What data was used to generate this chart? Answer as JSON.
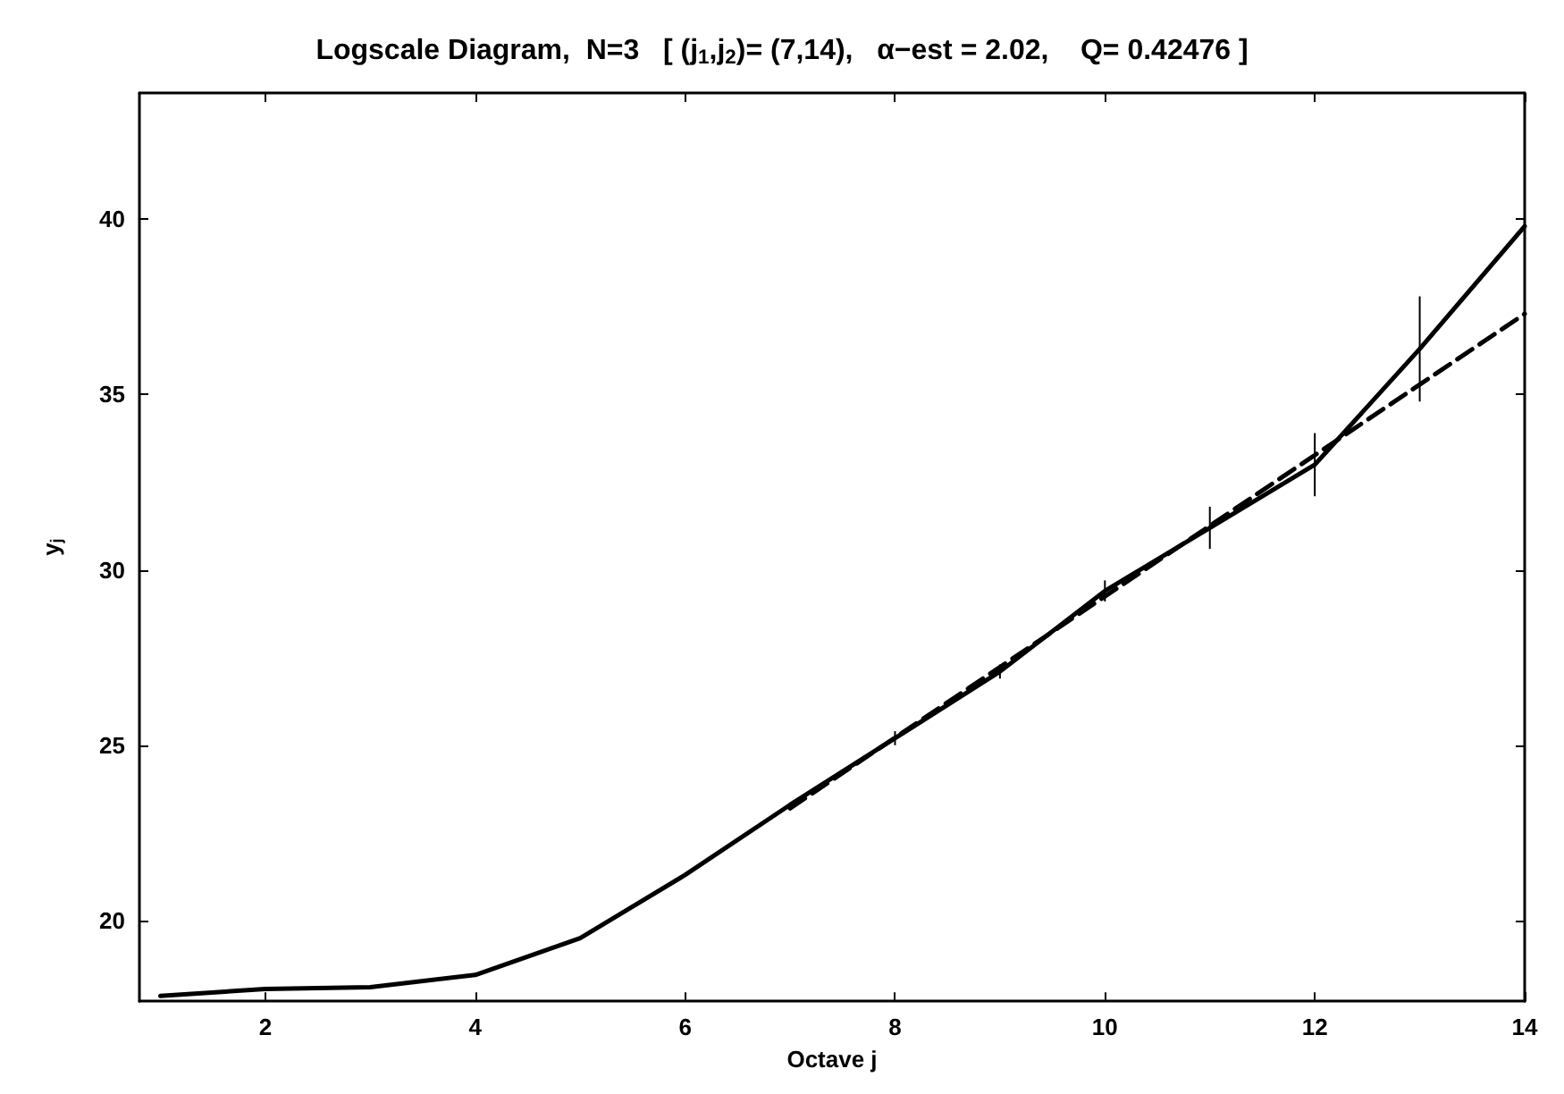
{
  "chart_data": {
    "type": "line",
    "title": "Logscale Diagram,  N=3   [ (j$_{1}$,j$_{2}$)= (7,14),   α−est = 2.02,    Q= 0.42476 ]",
    "xlabel": "Octave j",
    "ylabel": "y$_{j}$",
    "x": [
      1,
      2,
      3,
      4,
      5,
      6,
      7,
      8,
      9,
      10,
      11,
      12,
      13,
      14
    ],
    "series": [
      {
        "color": "#000000",
        "line_style": "solid",
        "values": [
          17.85,
          18.05,
          18.1,
          18.45,
          19.5,
          21.3,
          23.3,
          25.2,
          27.1,
          29.4,
          31.2,
          33.0,
          36.3,
          39.8
        ],
        "errors": [
          null,
          null,
          null,
          null,
          null,
          null,
          null,
          0.2,
          0.2,
          0.3,
          0.6,
          0.9,
          1.5,
          3.7
        ]
      },
      {
        "type": "line",
        "color": "#000000",
        "line_style": "dashed",
        "x": [
          7,
          14
        ],
        "values": [
          23.2,
          37.3
        ]
      }
    ],
    "xlim": [
      0.8,
      14
    ],
    "ylim": [
      17.7,
      43.6
    ],
    "xticks": [
      2,
      4,
      6,
      8,
      10,
      12,
      14
    ],
    "yticks": [
      20,
      25,
      30,
      35,
      40
    ],
    "grid": false,
    "marker": "none"
  }
}
